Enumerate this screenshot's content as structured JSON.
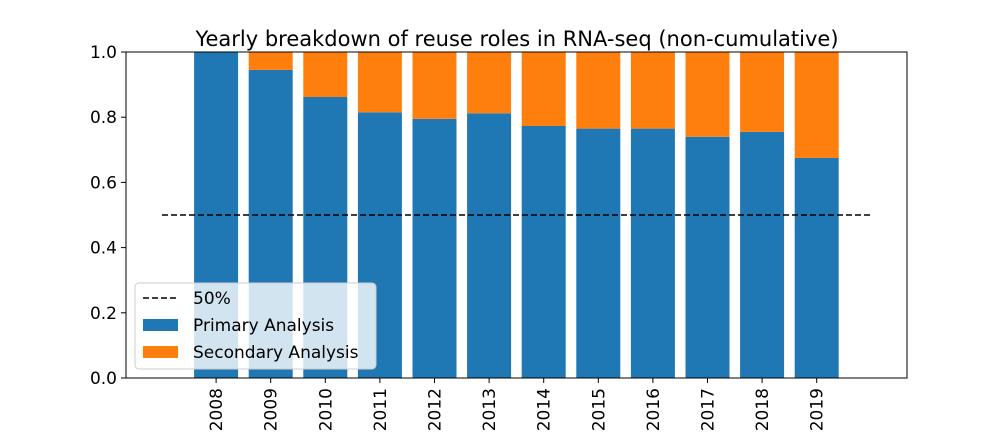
{
  "chart_data": {
    "type": "bar",
    "stacked": true,
    "title": "Yearly breakdown of reuse roles in RNA-seq (non-cumulative)",
    "xlabel": "",
    "ylabel": "",
    "ylim": [
      0,
      1.0
    ],
    "yticks": [
      "0.0",
      "0.2",
      "0.4",
      "0.6",
      "0.8",
      "1.0"
    ],
    "grid": false,
    "legend_position": "lower-left",
    "categories": [
      "2008",
      "2009",
      "2010",
      "2011",
      "2012",
      "2013",
      "2014",
      "2015",
      "2016",
      "2017",
      "2018",
      "2019"
    ],
    "series": [
      {
        "name": "Primary Analysis",
        "color": "#1f77b4",
        "values": [
          1.0,
          0.945,
          0.862,
          0.815,
          0.795,
          0.812,
          0.773,
          0.765,
          0.765,
          0.74,
          0.755,
          0.675
        ]
      },
      {
        "name": "Secondary Analysis",
        "color": "#ff7f0e",
        "values": [
          0.0,
          0.055,
          0.138,
          0.185,
          0.205,
          0.188,
          0.227,
          0.235,
          0.235,
          0.26,
          0.245,
          0.325
        ]
      }
    ],
    "reference_line": {
      "name": "50%",
      "value": 0.5,
      "style": "dashed",
      "color": "#000000"
    }
  }
}
